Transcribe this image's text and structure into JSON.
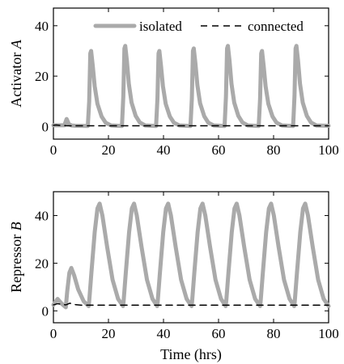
{
  "chart_data": [
    {
      "type": "line",
      "ylabel": "Activator A",
      "xlim": [
        0,
        100
      ],
      "ylim": [
        -5,
        47
      ],
      "xticks": [
        0,
        20,
        40,
        60,
        80,
        100
      ],
      "yticks": [
        0,
        20,
        40
      ],
      "legend": "top-right",
      "grid": false,
      "series": [
        {
          "name": "isolated",
          "style": "solid",
          "color": "#aaaaaa",
          "x": [
            0,
            4.0,
            4.8,
            5.6,
            6.6,
            8.0,
            12.5,
            13.0,
            13.4,
            13.7,
            14.3,
            15.0,
            16.0,
            17.5,
            19.0,
            21.0,
            24.9,
            25.4,
            25.8,
            26.1,
            26.7,
            27.4,
            28.4,
            29.9,
            31.4,
            33.4,
            37.3,
            37.8,
            38.2,
            38.5,
            39.1,
            39.8,
            40.8,
            42.3,
            43.8,
            45.8,
            49.8,
            50.3,
            50.7,
            51.0,
            51.6,
            52.3,
            53.3,
            54.8,
            56.3,
            58.3,
            62.2,
            62.7,
            63.1,
            63.4,
            64.0,
            64.7,
            65.7,
            67.2,
            68.7,
            70.7,
            74.6,
            75.1,
            75.5,
            75.8,
            76.4,
            77.1,
            78.1,
            79.6,
            81.1,
            83.1,
            87.1,
            87.6,
            88.0,
            88.3,
            88.9,
            89.6,
            90.6,
            92.1,
            93.6,
            95.6,
            100
          ],
          "y": [
            0.5,
            0.5,
            3.0,
            1.0,
            0.4,
            0.3,
            0.2,
            10.0,
            29.0,
            30.0,
            24.0,
            16.0,
            9.0,
            4.0,
            1.5,
            0.4,
            0.2,
            12.0,
            31.0,
            32.0,
            26.0,
            17.0,
            9.5,
            4.2,
            1.6,
            0.4,
            0.2,
            11.0,
            29.0,
            30.0,
            24.0,
            16.0,
            9.0,
            4.0,
            1.5,
            0.4,
            0.2,
            11.0,
            30.0,
            31.0,
            25.0,
            16.5,
            9.2,
            4.1,
            1.5,
            0.4,
            0.2,
            12.0,
            31.0,
            32.0,
            26.0,
            17.0,
            9.5,
            4.2,
            1.6,
            0.4,
            0.2,
            11.0,
            29.0,
            30.0,
            24.0,
            16.0,
            9.0,
            4.0,
            1.5,
            0.4,
            0.2,
            12.0,
            31.0,
            32.0,
            26.0,
            17.0,
            9.5,
            4.2,
            1.6,
            0.4,
            0.3
          ]
        },
        {
          "name": "connected",
          "style": "dashed",
          "color": "#000000",
          "x": [
            0,
            1,
            2,
            3,
            4,
            5,
            6,
            8,
            100
          ],
          "y": [
            0.5,
            0.6,
            0.5,
            0.4,
            0.4,
            0.3,
            0.3,
            0.3,
            0.3
          ]
        }
      ]
    },
    {
      "type": "line",
      "ylabel": "Repressor B",
      "xlabel": "Time (hrs)",
      "xlim": [
        0,
        100
      ],
      "ylim": [
        -5,
        50
      ],
      "xticks": [
        0,
        20,
        40,
        60,
        80,
        100
      ],
      "yticks": [
        0,
        20,
        40
      ],
      "grid": false,
      "series": [
        {
          "name": "isolated",
          "style": "solid",
          "color": "#aaaaaa",
          "x": [
            0,
            1.5,
            3.0,
            4.5,
            5.0,
            5.8,
            6.5,
            7.5,
            9.0,
            11.0,
            12.8,
            13.0,
            13.8,
            15.0,
            16.0,
            16.8,
            17.8,
            19.5,
            21.5,
            23.5,
            25.3,
            25.5,
            26.3,
            27.5,
            28.5,
            29.3,
            30.3,
            32.0,
            34.0,
            36.0,
            37.7,
            37.9,
            38.7,
            39.9,
            40.9,
            41.7,
            42.7,
            44.4,
            46.4,
            48.4,
            50.2,
            50.4,
            51.2,
            52.4,
            53.4,
            54.2,
            55.2,
            56.9,
            58.9,
            60.9,
            62.6,
            62.8,
            63.6,
            64.8,
            65.8,
            66.6,
            67.6,
            69.3,
            71.3,
            73.3,
            75.1,
            75.3,
            76.1,
            77.3,
            78.3,
            79.1,
            80.1,
            81.8,
            83.8,
            85.8,
            87.5,
            87.7,
            88.5,
            89.7,
            90.7,
            91.5,
            92.5,
            94.2,
            96.2,
            98.2,
            100
          ],
          "y": [
            2.5,
            5.0,
            3.0,
            1.5,
            8.0,
            16.0,
            18.0,
            15.0,
            9.0,
            4.0,
            2.0,
            4.0,
            16.0,
            33.0,
            43.0,
            45.0,
            40.0,
            27.0,
            13.0,
            5.0,
            2.0,
            4.0,
            16.0,
            33.0,
            43.0,
            45.0,
            40.0,
            27.0,
            13.0,
            5.0,
            2.0,
            4.0,
            16.0,
            33.0,
            43.0,
            45.0,
            40.0,
            27.0,
            13.0,
            5.0,
            2.0,
            4.0,
            16.0,
            33.0,
            43.0,
            45.0,
            40.0,
            27.0,
            13.0,
            5.0,
            2.0,
            4.0,
            16.0,
            33.0,
            43.0,
            45.0,
            40.0,
            27.0,
            13.0,
            5.0,
            2.0,
            4.0,
            16.0,
            33.0,
            43.0,
            45.0,
            40.0,
            27.0,
            13.0,
            5.0,
            2.0,
            4.0,
            16.0,
            33.0,
            43.0,
            45.0,
            40.0,
            27.0,
            13.0,
            5.0,
            2.0
          ]
        },
        {
          "name": "connected",
          "style": "dashed",
          "color": "#000000",
          "x": [
            0,
            1.5,
            3.0,
            4.5,
            6.0,
            8.0,
            10.0,
            100
          ],
          "y": [
            2.5,
            3.0,
            2.7,
            2.5,
            3.2,
            2.6,
            2.4,
            2.4
          ]
        }
      ]
    }
  ]
}
